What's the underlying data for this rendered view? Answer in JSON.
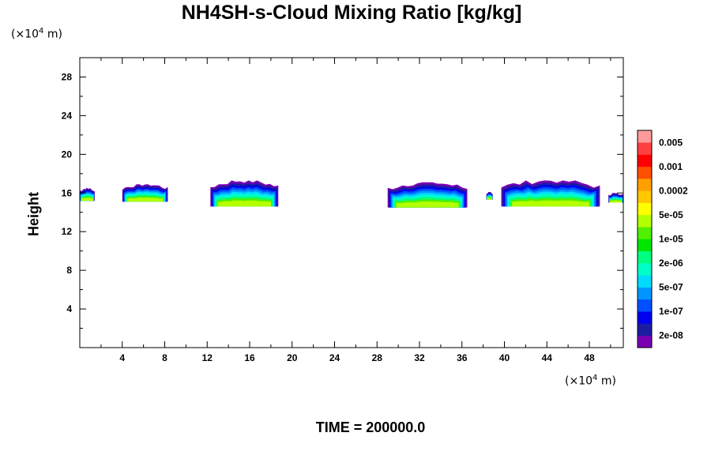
{
  "chart_data": {
    "type": "heatmap",
    "title": "NH4SH-s-Cloud Mixing Ratio [kg/kg]",
    "ylabel": "Height",
    "xlabel": "",
    "unit_x": {
      "prefix": "(×10",
      "exp": "4",
      "suffix": " m)"
    },
    "unit_y": {
      "prefix": "(×10",
      "exp": "4",
      "suffix": " m)"
    },
    "xlim": [
      0,
      51.2
    ],
    "ylim": [
      0,
      30
    ],
    "x_ticks": [
      4,
      8,
      12,
      16,
      20,
      24,
      28,
      32,
      36,
      40,
      44,
      48
    ],
    "y_ticks": [
      4,
      8,
      12,
      16,
      20,
      24,
      28
    ],
    "x_tick_labels": [
      "4",
      "8",
      "12",
      "16",
      "20",
      "24",
      "28",
      "32",
      "36",
      "40",
      "44",
      "48"
    ],
    "y_tick_labels": [
      "4",
      "8",
      "12",
      "16",
      "20",
      "24",
      "28"
    ],
    "colorbar": {
      "colors": [
        "#7b00b4",
        "#1c1ca0",
        "#0000f0",
        "#0050ff",
        "#0096ff",
        "#00dcff",
        "#00ffc8",
        "#00ff80",
        "#00e600",
        "#50f000",
        "#b4ff00",
        "#ffff00",
        "#ffc800",
        "#ffa000",
        "#ff5000",
        "#ff0000",
        "#ff4040",
        "#ff9a9a"
      ],
      "labels": [
        "2e-08",
        "1e-07",
        "5e-07",
        "2e-06",
        "1e-05",
        "5e-05",
        "0.0002",
        "0.001",
        "0.005"
      ]
    },
    "clouds": [
      {
        "x0": 0.0,
        "x1": 1.4,
        "base": 15.2,
        "top": 16.5
      },
      {
        "x0": 4.0,
        "x1": 8.3,
        "base": 15.1,
        "top": 16.9
      },
      {
        "x0": 12.3,
        "x1": 18.7,
        "base": 14.6,
        "top": 17.3
      },
      {
        "x0": 29.0,
        "x1": 36.5,
        "base": 14.5,
        "top": 17.1
      },
      {
        "x0": 38.3,
        "x1": 38.9,
        "base": 15.3,
        "top": 16.1
      },
      {
        "x0": 39.7,
        "x1": 49.0,
        "base": 14.6,
        "top": 17.3
      },
      {
        "x0": 49.8,
        "x1": 51.2,
        "base": 15.0,
        "top": 16.0
      }
    ]
  },
  "footer": {
    "time": "TIME = 200000.0"
  }
}
